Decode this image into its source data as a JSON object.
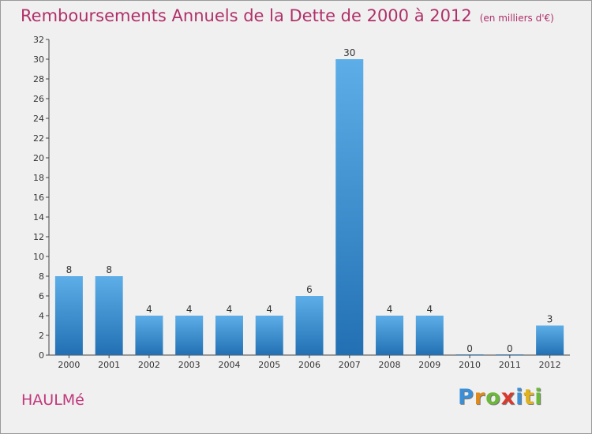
{
  "chart_data": {
    "type": "bar",
    "title": "Remboursements Annuels de la Dette de 2000 à 2012",
    "subtitle": "(en milliers d'€)",
    "categories": [
      "2000",
      "2001",
      "2002",
      "2003",
      "2004",
      "2005",
      "2006",
      "2007",
      "2008",
      "2009",
      "2010",
      "2011",
      "2012"
    ],
    "values": [
      8,
      8,
      4,
      4,
      4,
      4,
      6,
      30,
      4,
      4,
      0,
      0,
      3
    ],
    "ylim": [
      0,
      32
    ],
    "yticks": [
      "0",
      "2",
      "4",
      "6",
      "8",
      "10",
      "12",
      "14",
      "16",
      "18",
      "20",
      "22",
      "24",
      "26",
      "28",
      "30",
      "32"
    ],
    "grid": false,
    "colors": {
      "bar_top": "#5daee8",
      "bar_bottom": "#2270b3",
      "title": "#b0306a"
    }
  },
  "commune": "HAULMé",
  "logo": {
    "letters": [
      {
        "ch": "P",
        "color": "#3a8fd8"
      },
      {
        "ch": "r",
        "color": "#e08a1c"
      },
      {
        "ch": "o",
        "color": "#6cb83a"
      },
      {
        "ch": "x",
        "color": "#d83a2e"
      },
      {
        "ch": "i",
        "color": "#3a8fd8"
      },
      {
        "ch": "t",
        "color": "#e0b21c"
      },
      {
        "ch": "i",
        "color": "#6cb83a"
      }
    ]
  }
}
